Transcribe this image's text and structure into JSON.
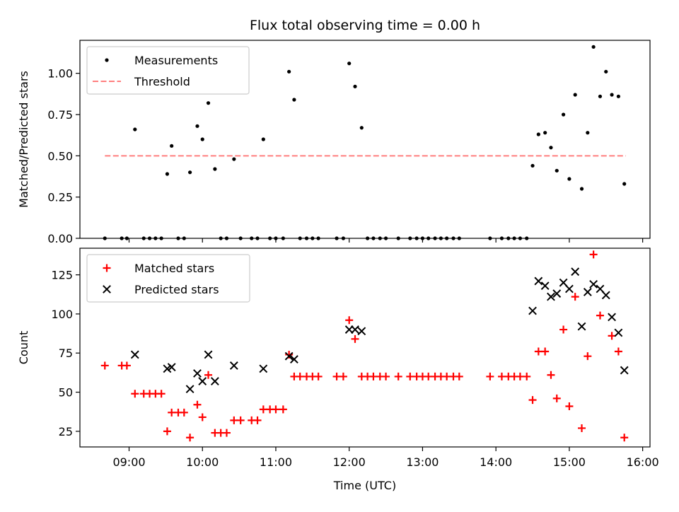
{
  "chart_data": [
    {
      "type": "scatter",
      "title": "Flux total observing time = 0.00 h",
      "xlabel": "",
      "ylabel": "Matched/Predicted stars",
      "xlim": [
        8.33,
        16.1
      ],
      "ylim": [
        0.0,
        1.2
      ],
      "yticks": [
        0.0,
        0.25,
        0.5,
        0.75,
        1.0
      ],
      "ytick_labels": [
        "0.00",
        "0.25",
        "0.50",
        "0.75",
        "1.00"
      ],
      "legend": {
        "placement": "top-left",
        "entries": [
          "Measurements",
          "Threshold"
        ]
      },
      "threshold": {
        "name": "Threshold",
        "y": 0.5,
        "x_range": [
          8.67,
          15.77
        ],
        "color": "#ff7f7f",
        "style": "dashed"
      },
      "series": [
        {
          "name": "Measurements",
          "marker": "dot",
          "color": "#000000",
          "points": [
            [
              8.67,
              0.0
            ],
            [
              8.9,
              0.0
            ],
            [
              8.97,
              0.0
            ],
            [
              9.08,
              0.66
            ],
            [
              9.2,
              0.0
            ],
            [
              9.28,
              0.0
            ],
            [
              9.36,
              0.0
            ],
            [
              9.44,
              0.0
            ],
            [
              9.52,
              0.39
            ],
            [
              9.58,
              0.56
            ],
            [
              9.67,
              0.0
            ],
            [
              9.75,
              0.0
            ],
            [
              9.83,
              0.4
            ],
            [
              9.93,
              0.68
            ],
            [
              10.0,
              0.6
            ],
            [
              10.08,
              0.82
            ],
            [
              10.17,
              0.42
            ],
            [
              10.25,
              0.0
            ],
            [
              10.33,
              0.0
            ],
            [
              10.43,
              0.48
            ],
            [
              10.52,
              0.0
            ],
            [
              10.67,
              0.0
            ],
            [
              10.75,
              0.0
            ],
            [
              10.83,
              0.6
            ],
            [
              10.92,
              0.0
            ],
            [
              11.0,
              0.0
            ],
            [
              11.1,
              0.0
            ],
            [
              11.18,
              1.01
            ],
            [
              11.25,
              0.84
            ],
            [
              11.33,
              0.0
            ],
            [
              11.42,
              0.0
            ],
            [
              11.5,
              0.0
            ],
            [
              11.58,
              0.0
            ],
            [
              11.83,
              0.0
            ],
            [
              11.92,
              0.0
            ],
            [
              12.0,
              1.06
            ],
            [
              12.08,
              0.92
            ],
            [
              12.17,
              0.67
            ],
            [
              12.25,
              0.0
            ],
            [
              12.33,
              0.0
            ],
            [
              12.42,
              0.0
            ],
            [
              12.5,
              0.0
            ],
            [
              12.67,
              0.0
            ],
            [
              12.83,
              0.0
            ],
            [
              12.92,
              0.0
            ],
            [
              13.0,
              0.0
            ],
            [
              13.08,
              0.0
            ],
            [
              13.17,
              0.0
            ],
            [
              13.25,
              0.0
            ],
            [
              13.33,
              0.0
            ],
            [
              13.42,
              0.0
            ],
            [
              13.5,
              0.0
            ],
            [
              13.92,
              0.0
            ],
            [
              14.08,
              0.0
            ],
            [
              14.17,
              0.0
            ],
            [
              14.25,
              0.0
            ],
            [
              14.33,
              0.0
            ],
            [
              14.42,
              0.0
            ],
            [
              14.5,
              0.44
            ],
            [
              14.58,
              0.63
            ],
            [
              14.67,
              0.64
            ],
            [
              14.75,
              0.55
            ],
            [
              14.83,
              0.41
            ],
            [
              14.92,
              0.75
            ],
            [
              15.0,
              0.36
            ],
            [
              15.08,
              0.87
            ],
            [
              15.17,
              0.3
            ],
            [
              15.25,
              0.64
            ],
            [
              15.33,
              1.16
            ],
            [
              15.42,
              0.86
            ],
            [
              15.5,
              1.01
            ],
            [
              15.58,
              0.87
            ],
            [
              15.67,
              0.86
            ],
            [
              15.75,
              0.33
            ]
          ]
        }
      ]
    },
    {
      "type": "scatter",
      "title": "",
      "xlabel": "Time (UTC)",
      "ylabel": "Count",
      "xlim": [
        8.33,
        16.1
      ],
      "ylim": [
        15,
        142
      ],
      "xticks": [
        9,
        10,
        11,
        12,
        13,
        14,
        15,
        16
      ],
      "xtick_labels": [
        "09:00",
        "10:00",
        "11:00",
        "12:00",
        "13:00",
        "14:00",
        "15:00",
        "16:00"
      ],
      "yticks": [
        25,
        50,
        75,
        100,
        125
      ],
      "ytick_labels": [
        "25",
        "50",
        "75",
        "100",
        "125"
      ],
      "legend": {
        "placement": "top-left",
        "entries": [
          "Matched stars",
          "Predicted stars"
        ]
      },
      "series": [
        {
          "name": "Matched stars",
          "marker": "plus",
          "color": "#ff0000",
          "points": [
            [
              8.67,
              67
            ],
            [
              8.9,
              67
            ],
            [
              8.97,
              67
            ],
            [
              9.08,
              49
            ],
            [
              9.2,
              49
            ],
            [
              9.28,
              49
            ],
            [
              9.36,
              49
            ],
            [
              9.44,
              49
            ],
            [
              9.52,
              25
            ],
            [
              9.58,
              37
            ],
            [
              9.67,
              37
            ],
            [
              9.75,
              37
            ],
            [
              9.83,
              21
            ],
            [
              9.93,
              42
            ],
            [
              10.0,
              34
            ],
            [
              10.08,
              61
            ],
            [
              10.17,
              24
            ],
            [
              10.25,
              24
            ],
            [
              10.33,
              24
            ],
            [
              10.43,
              32
            ],
            [
              10.52,
              32
            ],
            [
              10.67,
              32
            ],
            [
              10.75,
              32
            ],
            [
              10.83,
              39
            ],
            [
              10.92,
              39
            ],
            [
              11.0,
              39
            ],
            [
              11.1,
              39
            ],
            [
              11.18,
              74
            ],
            [
              11.25,
              60
            ],
            [
              11.33,
              60
            ],
            [
              11.42,
              60
            ],
            [
              11.5,
              60
            ],
            [
              11.58,
              60
            ],
            [
              11.83,
              60
            ],
            [
              11.92,
              60
            ],
            [
              12.0,
              96
            ],
            [
              12.08,
              84
            ],
            [
              12.17,
              60
            ],
            [
              12.25,
              60
            ],
            [
              12.33,
              60
            ],
            [
              12.42,
              60
            ],
            [
              12.5,
              60
            ],
            [
              12.67,
              60
            ],
            [
              12.83,
              60
            ],
            [
              12.92,
              60
            ],
            [
              13.0,
              60
            ],
            [
              13.08,
              60
            ],
            [
              13.17,
              60
            ],
            [
              13.25,
              60
            ],
            [
              13.33,
              60
            ],
            [
              13.42,
              60
            ],
            [
              13.5,
              60
            ],
            [
              13.92,
              60
            ],
            [
              14.08,
              60
            ],
            [
              14.17,
              60
            ],
            [
              14.25,
              60
            ],
            [
              14.33,
              60
            ],
            [
              14.42,
              60
            ],
            [
              14.5,
              45
            ],
            [
              14.58,
              76
            ],
            [
              14.67,
              76
            ],
            [
              14.75,
              61
            ],
            [
              14.83,
              46
            ],
            [
              14.92,
              90
            ],
            [
              15.0,
              41
            ],
            [
              15.08,
              111
            ],
            [
              15.17,
              27
            ],
            [
              15.25,
              73
            ],
            [
              15.33,
              138
            ],
            [
              15.42,
              99
            ],
            [
              15.58,
              86
            ],
            [
              15.67,
              76
            ],
            [
              15.75,
              21
            ]
          ]
        },
        {
          "name": "Predicted stars",
          "marker": "x",
          "color": "#000000",
          "points": [
            [
              9.08,
              74
            ],
            [
              9.52,
              65
            ],
            [
              9.58,
              66
            ],
            [
              9.83,
              52
            ],
            [
              9.93,
              62
            ],
            [
              10.0,
              57
            ],
            [
              10.08,
              74
            ],
            [
              10.17,
              57
            ],
            [
              10.43,
              67
            ],
            [
              10.83,
              65
            ],
            [
              11.18,
              73
            ],
            [
              11.25,
              71
            ],
            [
              12.0,
              90
            ],
            [
              12.08,
              90
            ],
            [
              12.17,
              89
            ],
            [
              14.5,
              102
            ],
            [
              14.58,
              121
            ],
            [
              14.67,
              118
            ],
            [
              14.75,
              111
            ],
            [
              14.83,
              113
            ],
            [
              14.92,
              120
            ],
            [
              15.0,
              116
            ],
            [
              15.08,
              127
            ],
            [
              15.17,
              92
            ],
            [
              15.25,
              114
            ],
            [
              15.33,
              119
            ],
            [
              15.42,
              116
            ],
            [
              15.5,
              112
            ],
            [
              15.58,
              98
            ],
            [
              15.67,
              88
            ],
            [
              15.75,
              64
            ]
          ]
        }
      ]
    }
  ]
}
